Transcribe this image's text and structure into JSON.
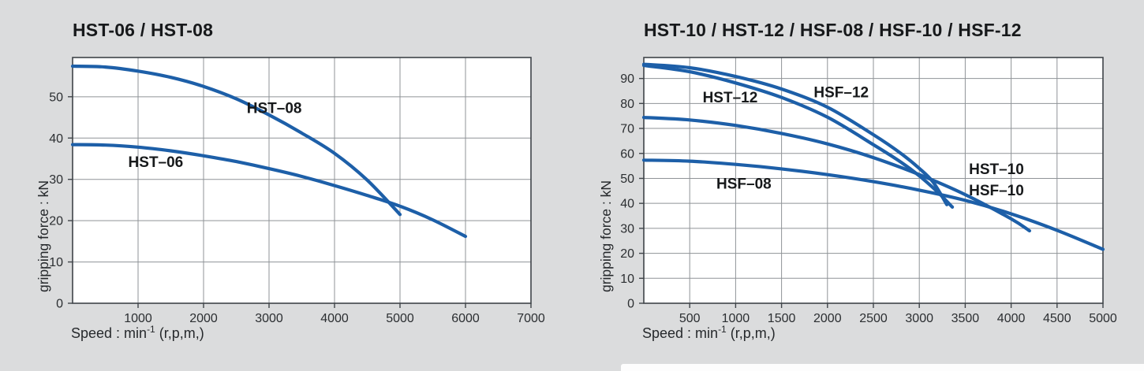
{
  "colors": {
    "page_bg": "#dbdcdd",
    "plot_bg": "#ffffff",
    "grid": "#8f9397",
    "axis": "#3f4449",
    "curve": "#1d5fa8",
    "tick_text": "#2b2e31",
    "title_text": "#17191b",
    "strip": "#fdfdfd"
  },
  "axis_labels": {
    "y": "gripping force : kN",
    "x_pre": "Speed : min",
    "x_sup": "-1",
    "x_post": " (r,p,m,)"
  },
  "chart_data": [
    {
      "type": "line",
      "title": "HST-06 / HST-08",
      "xlabel": "Speed : min-1 (r,p,m,)",
      "ylabel": "gripping force : kN",
      "xlim": [
        0,
        7000
      ],
      "ylim": [
        0,
        59.5
      ],
      "grid": true,
      "xticks": [
        1000,
        2000,
        3000,
        4000,
        5000,
        6000,
        7000
      ],
      "yticks": [
        0,
        10,
        20,
        30,
        40,
        50
      ],
      "series": [
        {
          "name": "HST-08",
          "labels": [
            {
              "text": "HST–08",
              "at": [
                3080,
                47.3
              ]
            }
          ],
          "points": [
            [
              0,
              57.4
            ],
            [
              500,
              57.2
            ],
            [
              1000,
              56.2
            ],
            [
              1500,
              54.7
            ],
            [
              2000,
              52.5
            ],
            [
              2500,
              49.5
            ],
            [
              3000,
              45.6
            ],
            [
              3500,
              41.2
            ],
            [
              4000,
              36.3
            ],
            [
              4500,
              29.8
            ],
            [
              5000,
              21.5
            ]
          ]
        },
        {
          "name": "HST-06",
          "labels": [
            {
              "text": "HST–06",
              "at": [
                1270,
                34.2
              ]
            }
          ],
          "points": [
            [
              0,
              38.4
            ],
            [
              500,
              38.3
            ],
            [
              1000,
              37.8
            ],
            [
              1500,
              36.9
            ],
            [
              2000,
              35.7
            ],
            [
              2500,
              34.3
            ],
            [
              3000,
              32.6
            ],
            [
              3500,
              30.7
            ],
            [
              4000,
              28.5
            ],
            [
              4500,
              26.1
            ],
            [
              5000,
              23.5
            ],
            [
              5500,
              20.2
            ],
            [
              6000,
              16.2
            ]
          ]
        }
      ]
    },
    {
      "type": "line",
      "title": "HST-10 / HST-12 / HSF-08 / HSF-10 / HSF-12",
      "xlabel": "Speed : min-1 (r,p,m,)",
      "ylabel": "gripping force : kN",
      "xlim": [
        0,
        5000
      ],
      "ylim": [
        0,
        98.4
      ],
      "grid": true,
      "xticks": [
        500,
        1000,
        1500,
        2000,
        2500,
        3000,
        3500,
        4000,
        4500,
        5000
      ],
      "yticks": [
        0,
        10,
        20,
        30,
        40,
        50,
        60,
        70,
        80,
        90
      ],
      "series": [
        {
          "name": "HSF-12",
          "labels": [
            {
              "text": "HSF–12",
              "at": [
                2150,
                84.5
              ]
            }
          ],
          "points": [
            [
              0,
              95.7
            ],
            [
              500,
              94.3
            ],
            [
              1000,
              90.8
            ],
            [
              1500,
              85.8
            ],
            [
              2000,
              78.5
            ],
            [
              2500,
              67.5
            ],
            [
              2800,
              60.0
            ],
            [
              3000,
              54.0
            ],
            [
              3150,
              48.5
            ],
            [
              3300,
              39.5
            ]
          ]
        },
        {
          "name": "HST-12",
          "labels": [
            {
              "text": "HST–12",
              "at": [
                940,
                82.5
              ]
            }
          ],
          "points": [
            [
              0,
              95.2
            ],
            [
              500,
              92.7
            ],
            [
              1000,
              88.2
            ],
            [
              1500,
              82.4
            ],
            [
              2000,
              74.5
            ],
            [
              2500,
              63.5
            ],
            [
              2800,
              56.5
            ],
            [
              3000,
              51.0
            ],
            [
              3200,
              44.5
            ],
            [
              3360,
              38.5
            ]
          ]
        },
        {
          "name": "HST-10 / HSF-10",
          "labels": [
            {
              "text": "HST–10",
              "at": [
                3840,
                53.8
              ]
            },
            {
              "text": "HSF–10",
              "at": [
                3840,
                45.2
              ]
            }
          ],
          "points": [
            [
              0,
              74.4
            ],
            [
              500,
              73.4
            ],
            [
              1000,
              71.2
            ],
            [
              1500,
              68.0
            ],
            [
              2000,
              63.8
            ],
            [
              2500,
              58.3
            ],
            [
              3000,
              51.5
            ],
            [
              3500,
              43.5
            ],
            [
              4000,
              33.8
            ],
            [
              4200,
              29.0
            ]
          ]
        },
        {
          "name": "HSF-08",
          "labels": [
            {
              "text": "HSF–08",
              "at": [
                1090,
                48.0
              ]
            }
          ],
          "points": [
            [
              0,
              57.3
            ],
            [
              500,
              56.9
            ],
            [
              1000,
              55.6
            ],
            [
              1500,
              53.8
            ],
            [
              2000,
              51.5
            ],
            [
              2500,
              48.7
            ],
            [
              3000,
              45.3
            ],
            [
              3500,
              41.2
            ],
            [
              4000,
              35.8
            ],
            [
              4500,
              29.2
            ],
            [
              5000,
              21.6
            ]
          ]
        }
      ]
    }
  ]
}
